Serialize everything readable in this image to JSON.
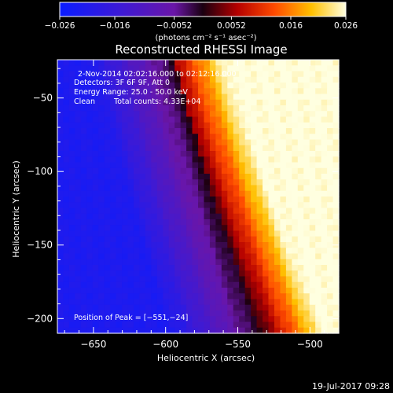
{
  "chart_data": {
    "type": "heatmap",
    "title": "Reconstructed RHESSI Image",
    "xlabel": "Heliocentric X (arcsec)",
    "ylabel": "Heliocentric Y (arcsec)",
    "xlim": [
      -675,
      -480
    ],
    "ylim": [
      -210,
      -24
    ],
    "x_ticks": [
      -650,
      -600,
      -550,
      -500
    ],
    "x_tick_labels": [
      "−650",
      "−600",
      "−550",
      "−500"
    ],
    "y_ticks": [
      -50,
      -100,
      -150,
      -200
    ],
    "y_tick_labels": [
      "−50",
      "−100",
      "−150",
      "−200"
    ],
    "colorbar": {
      "range": [
        -0.026,
        0.026
      ],
      "ticks": [
        -0.026,
        -0.016,
        -0.0052,
        0.0052,
        0.016,
        0.026
      ],
      "tick_labels": [
        "−0.026",
        "−0.016",
        "−0.0052",
        "0.0052",
        "0.016",
        "0.026"
      ],
      "unit_label": "(photons cm⁻² s⁻¹ asec⁻²)"
    },
    "info": {
      "time_range": "2-Nov-2014 02:02:16.000 to 02:12:16.000",
      "detectors": "Detectors: 3F 6F 9F, Att 0",
      "energy_range": "Energy Range: 25.0 - 50.0 keV",
      "clean": "Clean",
      "total_counts": "Total counts: 4.33E+04",
      "peak": "Position of Peak = [−551,−24]"
    },
    "peak_position": [
      -551,
      -24
    ],
    "date_stamp": "19-Jul-2017 09:28"
  }
}
